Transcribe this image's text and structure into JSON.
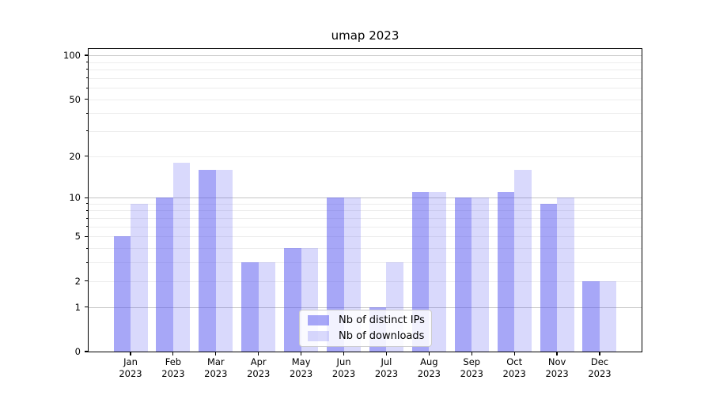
{
  "chart_data": {
    "type": "bar",
    "title": "umap 2023",
    "categories": [
      "Jan",
      "Feb",
      "Mar",
      "Apr",
      "May",
      "Jun",
      "Jul",
      "Aug",
      "Sep",
      "Oct",
      "Nov",
      "Dec"
    ],
    "year": "2023",
    "series": [
      {
        "name": "Nb of distinct IPs",
        "color": "rgba(80,80,240,0.5)",
        "values": [
          5,
          10,
          16,
          3,
          4,
          10,
          1,
          11,
          10,
          11,
          9,
          2
        ]
      },
      {
        "name": "Nb of downloads",
        "color": "rgba(80,80,240,0.22)",
        "values": [
          9,
          18,
          16,
          3,
          4,
          10,
          3,
          11,
          10,
          16,
          10,
          2
        ]
      }
    ],
    "yscale": "log1p",
    "ymax": 110.5,
    "yticks": [
      0,
      1,
      2,
      5,
      10,
      20,
      50,
      100
    ],
    "grid_major": [
      1,
      10,
      100
    ],
    "grid_minor": [
      2,
      3,
      4,
      5,
      6,
      7,
      8,
      9,
      20,
      30,
      40,
      50,
      60,
      70,
      80,
      90
    ],
    "grid": "on",
    "legend_position": "lower center inside",
    "xlabel": "",
    "ylabel": ""
  }
}
